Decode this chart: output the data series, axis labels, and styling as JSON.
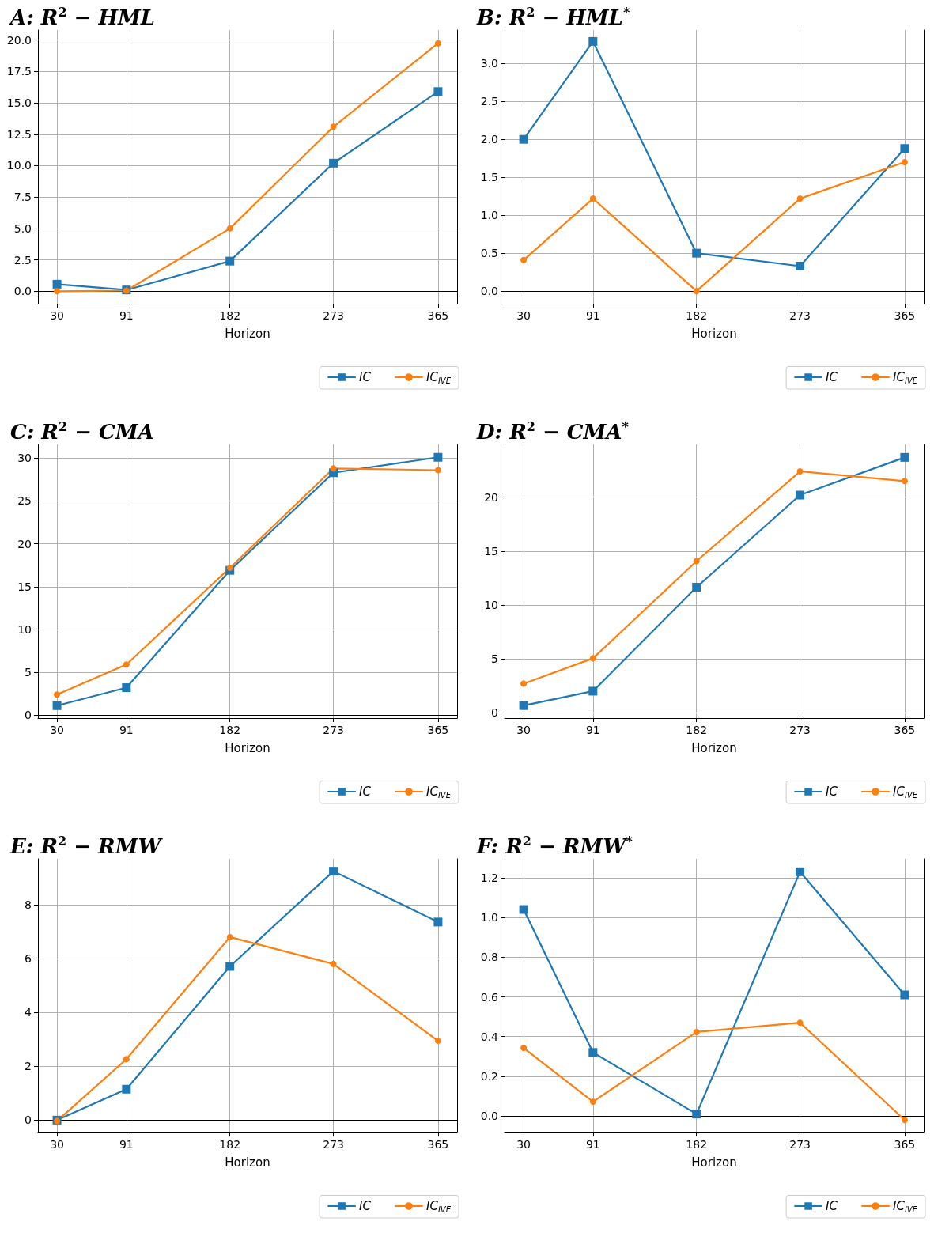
{
  "chart_data": [
    {
      "type": "line",
      "title": "A: R$^{2}$ − HML",
      "xlabel": "Horizon",
      "x": [
        30,
        91,
        182,
        273,
        365
      ],
      "xlim": [
        13.25,
        381.75
      ],
      "xticks": [
        30,
        91,
        182,
        273,
        365
      ],
      "ylim": [
        -0.99,
        20.8
      ],
      "yticks": [
        {
          "value": 0,
          "label": "0.0"
        },
        {
          "value": 2.5,
          "label": "2.5"
        },
        {
          "value": 5,
          "label": "5.0"
        },
        {
          "value": 7.5,
          "label": "7.5"
        },
        {
          "value": 10,
          "label": "10.0"
        },
        {
          "value": 12.5,
          "label": "12.5"
        },
        {
          "value": 15,
          "label": "15.0"
        },
        {
          "value": 17.5,
          "label": "17.5"
        },
        {
          "value": 20,
          "label": "20.0"
        }
      ],
      "grid": true,
      "legend": "bottom right",
      "series": [
        {
          "name": "IC",
          "color": "#1f77b4",
          "marker": "square",
          "values": [
            0.56,
            0.1,
            2.4,
            10.2,
            15.9
          ]
        },
        {
          "name": "IC$_{IVE}$",
          "color": "#ff7f0e",
          "marker": "circle",
          "values": [
            0.0,
            0.05,
            5.0,
            13.1,
            19.75
          ]
        }
      ]
    },
    {
      "type": "line",
      "title": "B: R$^{2}$ − HML$^{*}$",
      "xlabel": "Horizon",
      "x": [
        30,
        91,
        182,
        273,
        365
      ],
      "xlim": [
        13.25,
        381.75
      ],
      "xticks": [
        30,
        91,
        182,
        273,
        365
      ],
      "ylim": [
        -0.165,
        3.44
      ],
      "yticks": [
        {
          "value": 0,
          "label": "0.0"
        },
        {
          "value": 0.5,
          "label": "0.5"
        },
        {
          "value": 1,
          "label": "1.0"
        },
        {
          "value": 1.5,
          "label": "1.5"
        },
        {
          "value": 2,
          "label": "2.0"
        },
        {
          "value": 2.5,
          "label": "2.5"
        },
        {
          "value": 3,
          "label": "3.0"
        }
      ],
      "grid": true,
      "legend": "bottom right",
      "series": [
        {
          "name": "IC",
          "color": "#1f77b4",
          "marker": "square",
          "values": [
            2.0,
            3.29,
            0.5,
            0.33,
            1.88
          ]
        },
        {
          "name": "IC$_{IVE}$",
          "color": "#ff7f0e",
          "marker": "circle",
          "values": [
            0.41,
            1.22,
            0.0,
            1.22,
            1.7
          ]
        }
      ]
    },
    {
      "type": "line",
      "title": "C: R$^{2}$ − CMA",
      "xlabel": "Horizon",
      "x": [
        30,
        91,
        182,
        273,
        365
      ],
      "xlim": [
        13.25,
        381.75
      ],
      "xticks": [
        30,
        91,
        182,
        273,
        365
      ],
      "ylim": [
        -0.35,
        31.6
      ],
      "yticks": [
        0,
        5,
        10,
        15,
        20,
        25,
        30
      ],
      "grid": true,
      "legend": "bottom right",
      "series": [
        {
          "name": "IC",
          "color": "#1f77b4",
          "marker": "square",
          "values": [
            1.1,
            3.2,
            16.9,
            28.3,
            30.1
          ]
        },
        {
          "name": "IC$_{IVE}$",
          "color": "#ff7f0e",
          "marker": "circle",
          "values": [
            2.4,
            5.9,
            17.2,
            28.8,
            28.6
          ]
        }
      ]
    },
    {
      "type": "line",
      "title": "D: R$^{2}$ − CMA$^{*}$",
      "xlabel": "Horizon",
      "x": [
        30,
        91,
        182,
        273,
        365
      ],
      "xlim": [
        13.25,
        381.75
      ],
      "xticks": [
        30,
        91,
        182,
        273,
        365
      ],
      "ylim": [
        -0.5,
        24.9
      ],
      "yticks": [
        0,
        5,
        10,
        15,
        20
      ],
      "grid": true,
      "legend": "bottom right",
      "series": [
        {
          "name": "IC",
          "color": "#1f77b4",
          "marker": "square",
          "values": [
            0.66,
            2.0,
            11.65,
            20.2,
            23.7
          ]
        },
        {
          "name": "IC$_{IVE}$",
          "color": "#ff7f0e",
          "marker": "circle",
          "values": [
            2.7,
            5.05,
            14.07,
            22.4,
            21.5
          ]
        }
      ]
    },
    {
      "type": "line",
      "title": "E: R$^{2}$ − RMW",
      "xlabel": "Horizon",
      "x": [
        30,
        91,
        182,
        273,
        365
      ],
      "xlim": [
        13.25,
        381.75
      ],
      "xticks": [
        30,
        91,
        182,
        273,
        365
      ],
      "ylim": [
        -0.46,
        9.72
      ],
      "yticks": [
        0,
        2,
        4,
        6,
        8
      ],
      "grid": true,
      "legend": "bottom right",
      "series": [
        {
          "name": "IC",
          "color": "#1f77b4",
          "marker": "square",
          "values": [
            0.0,
            1.15,
            5.72,
            9.26,
            7.37
          ]
        },
        {
          "name": "IC$_{IVE}$",
          "color": "#ff7f0e",
          "marker": "circle",
          "values": [
            -0.03,
            2.27,
            6.81,
            5.81,
            2.95
          ]
        }
      ]
    },
    {
      "type": "line",
      "title": "F: R$^{2}$ − RMW$^{*}$",
      "xlabel": "Horizon",
      "x": [
        30,
        91,
        182,
        273,
        365
      ],
      "xlim": [
        13.25,
        381.75
      ],
      "xticks": [
        30,
        91,
        182,
        273,
        365
      ],
      "ylim": [
        -0.083,
        1.295
      ],
      "yticks": [
        {
          "value": 0,
          "label": "0.0"
        },
        {
          "value": 0.2,
          "label": "0.2"
        },
        {
          "value": 0.4,
          "label": "0.4"
        },
        {
          "value": 0.6,
          "label": "0.6"
        },
        {
          "value": 0.8,
          "label": "0.8"
        },
        {
          "value": 1,
          "label": "1.0"
        },
        {
          "value": 1.2,
          "label": "1.2"
        }
      ],
      "grid": true,
      "legend": "bottom right",
      "series": [
        {
          "name": "IC",
          "color": "#1f77b4",
          "marker": "square",
          "values": [
            1.04,
            0.32,
            0.01,
            1.23,
            0.61
          ]
        },
        {
          "name": "IC$_{IVE}$",
          "color": "#ff7f0e",
          "marker": "circle",
          "values": [
            0.343,
            0.072,
            0.423,
            0.47,
            -0.02
          ]
        }
      ]
    }
  ]
}
